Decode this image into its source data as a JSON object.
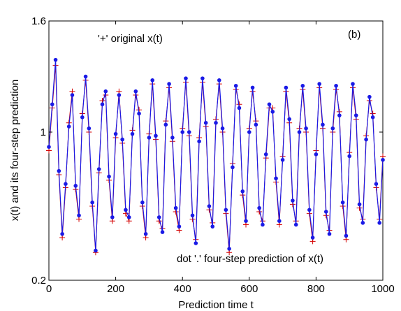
{
  "colors": {
    "original": "#d40000",
    "prediction": "#1a1ae6",
    "axis": "#000000",
    "background": "#ffffff"
  },
  "chart_data": {
    "type": "line",
    "title": "",
    "xlabel": "Prediction time t",
    "ylabel": "x(t) and its four-step prediction",
    "xlim": [
      0,
      1000
    ],
    "ylim": [
      0.2,
      1.6
    ],
    "xticks": [
      0,
      200,
      400,
      600,
      800,
      1000
    ],
    "yticks": [
      0.2,
      1,
      1.6
    ],
    "xtick_labels": [
      "0",
      "200",
      "400",
      "600",
      "800",
      "1000"
    ],
    "ytick_labels": [
      "0.2",
      "1",
      "1.6"
    ],
    "grid": false,
    "panel_label": "(b)",
    "annotations": {
      "original": "'+' original x(t)",
      "prediction": "dot '.'  four-step prediction of x(t)"
    },
    "series": [
      {
        "name": "original x(t)",
        "marker": "plus",
        "x": [
          0,
          10,
          20,
          30,
          40,
          50,
          60,
          70,
          80,
          90,
          100,
          110,
          120,
          130,
          140,
          150,
          160,
          170,
          180,
          190,
          200,
          210,
          220,
          230,
          240,
          250,
          260,
          270,
          280,
          290,
          300,
          310,
          320,
          330,
          340,
          350,
          360,
          370,
          380,
          390,
          400,
          410,
          420,
          430,
          440,
          450,
          460,
          470,
          480,
          490,
          500,
          510,
          520,
          530,
          540,
          550,
          560,
          570,
          580,
          590,
          600,
          610,
          620,
          630,
          640,
          650,
          660,
          670,
          680,
          690,
          700,
          710,
          720,
          730,
          740,
          750,
          760,
          770,
          780,
          790,
          800,
          810,
          820,
          830,
          840,
          850,
          860,
          870,
          880,
          890,
          900,
          910,
          920,
          930,
          940,
          950,
          960,
          970,
          980,
          990,
          1000
        ],
        "y": [
          0.9,
          1.13,
          1.36,
          0.77,
          0.43,
          0.7,
          1.05,
          1.22,
          0.69,
          0.53,
          1.1,
          1.28,
          1.0,
          0.6,
          0.35,
          0.78,
          1.17,
          1.2,
          0.74,
          0.52,
          0.97,
          1.22,
          0.94,
          0.56,
          0.52,
          1.01,
          1.2,
          1.12,
          0.6,
          0.43,
          0.99,
          1.26,
          0.96,
          0.52,
          0.48,
          1.06,
          1.24,
          0.95,
          0.57,
          0.47,
          1.02,
          1.27,
          0.98,
          0.53,
          0.42,
          0.97,
          1.27,
          1.03,
          0.58,
          0.51,
          1.07,
          1.26,
          1.0,
          0.56,
          0.35,
          0.83,
          1.23,
          1.15,
          0.66,
          0.5,
          1.02,
          1.22,
          1.06,
          0.57,
          0.52,
          0.86,
          1.13,
          1.13,
          0.73,
          0.5,
          0.87,
          1.22,
          1.05,
          0.61,
          0.52,
          1.02,
          1.23,
          1.0,
          0.56,
          0.41,
          0.9,
          1.24,
          1.02,
          0.55,
          0.47,
          1.0,
          1.23,
          1.11,
          0.6,
          0.42,
          0.89,
          1.24,
          1.07,
          0.59,
          0.53,
          0.98,
          1.17,
          1.1,
          0.7,
          0.53,
          0.87
        ]
      },
      {
        "name": "four-step prediction",
        "marker": "dot",
        "x": [
          0,
          10,
          20,
          30,
          40,
          50,
          60,
          70,
          80,
          90,
          100,
          110,
          120,
          130,
          140,
          150,
          160,
          170,
          180,
          190,
          200,
          210,
          220,
          230,
          240,
          250,
          260,
          270,
          280,
          290,
          300,
          310,
          320,
          330,
          340,
          350,
          360,
          370,
          380,
          390,
          400,
          410,
          420,
          430,
          440,
          450,
          460,
          470,
          480,
          490,
          500,
          510,
          520,
          530,
          540,
          550,
          560,
          570,
          580,
          590,
          600,
          610,
          620,
          630,
          640,
          650,
          660,
          670,
          680,
          690,
          700,
          710,
          720,
          730,
          740,
          750,
          760,
          770,
          780,
          790,
          800,
          810,
          820,
          830,
          840,
          850,
          860,
          870,
          880,
          890,
          900,
          910,
          920,
          930,
          940,
          950,
          960,
          970,
          980,
          990,
          1000
        ],
        "y": [
          0.92,
          1.15,
          1.39,
          0.79,
          0.45,
          0.72,
          1.03,
          1.2,
          0.71,
          0.55,
          1.08,
          1.3,
          1.02,
          0.62,
          0.36,
          0.8,
          1.15,
          1.22,
          0.76,
          0.54,
          0.99,
          1.2,
          0.96,
          0.58,
          0.54,
          0.99,
          1.22,
          1.1,
          0.62,
          0.45,
          0.97,
          1.28,
          0.98,
          0.54,
          0.46,
          1.04,
          1.26,
          0.97,
          0.59,
          0.49,
          1.0,
          1.29,
          1.0,
          0.55,
          0.4,
          0.95,
          1.29,
          1.05,
          0.6,
          0.49,
          1.05,
          1.28,
          1.02,
          0.58,
          0.37,
          0.81,
          1.25,
          1.13,
          0.68,
          0.52,
          1.0,
          1.24,
          1.04,
          0.59,
          0.5,
          0.88,
          1.15,
          1.11,
          0.75,
          0.52,
          0.85,
          1.24,
          1.07,
          0.63,
          0.5,
          1.0,
          1.25,
          1.02,
          0.58,
          0.43,
          0.88,
          1.26,
          1.04,
          0.57,
          0.45,
          1.02,
          1.25,
          1.09,
          0.62,
          0.44,
          0.87,
          1.26,
          1.09,
          0.61,
          0.51,
          0.96,
          1.19,
          1.08,
          0.72,
          0.51,
          0.85
        ]
      }
    ]
  }
}
